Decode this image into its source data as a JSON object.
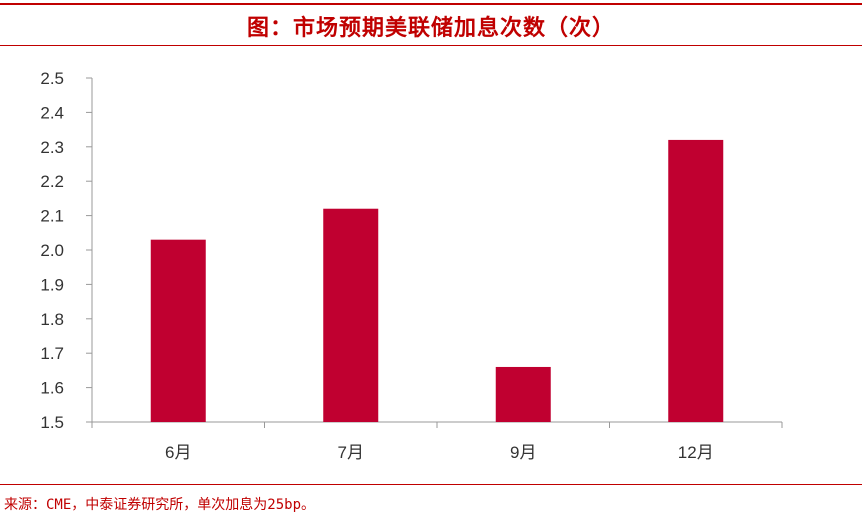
{
  "title": "图：市场预期美联储加息次数（次）",
  "source": "来源：CME，中泰证券研究所，单次加息为25bp。",
  "colors": {
    "accent": "#c00000",
    "bar": "#c00030"
  },
  "chart_data": {
    "type": "bar",
    "categories": [
      "6月",
      "7月",
      "9月",
      "12月"
    ],
    "values": [
      2.03,
      2.12,
      1.66,
      2.32
    ],
    "ylim": [
      1.5,
      2.5
    ],
    "yticks": [
      "1.5",
      "1.6",
      "1.7",
      "1.8",
      "1.9",
      "2.0",
      "2.1",
      "2.2",
      "2.3",
      "2.4",
      "2.5"
    ],
    "grid": false,
    "legend": "none",
    "xlabel": "",
    "ylabel": ""
  }
}
